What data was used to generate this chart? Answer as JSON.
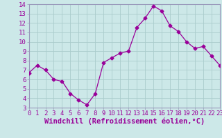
{
  "x": [
    0,
    1,
    2,
    3,
    4,
    5,
    6,
    7,
    8,
    9,
    10,
    11,
    12,
    13,
    14,
    15,
    16,
    17,
    18,
    19,
    20,
    21,
    22,
    23
  ],
  "y": [
    6.7,
    7.5,
    7.0,
    6.0,
    5.8,
    4.5,
    3.8,
    3.3,
    4.5,
    7.8,
    8.3,
    8.8,
    9.0,
    11.5,
    12.5,
    13.8,
    13.3,
    11.7,
    11.1,
    10.0,
    9.3,
    9.5,
    8.5,
    7.5
  ],
  "xlabel": "Windchill (Refroidissement éolien,°C)",
  "ylim": [
    3,
    14
  ],
  "xlim": [
    0,
    23
  ],
  "yticks": [
    3,
    4,
    5,
    6,
    7,
    8,
    9,
    10,
    11,
    12,
    13,
    14
  ],
  "xtick_labels": [
    "0",
    "1",
    "2",
    "3",
    "4",
    "5",
    "6",
    "7",
    "8",
    "9",
    "10",
    "11",
    "12",
    "13",
    "14",
    "15",
    "16",
    "17",
    "18",
    "19",
    "20",
    "21",
    "22",
    "23"
  ],
  "line_color": "#990099",
  "marker": "D",
  "marker_size": 2.5,
  "bg_color": "#cce8e8",
  "grid_color": "#aacccc",
  "border_color": "#9999bb",
  "tick_label_color": "#990099",
  "xlabel_color": "#990099",
  "axis_label_fontsize": 7.5,
  "tick_fontsize": 6.5
}
